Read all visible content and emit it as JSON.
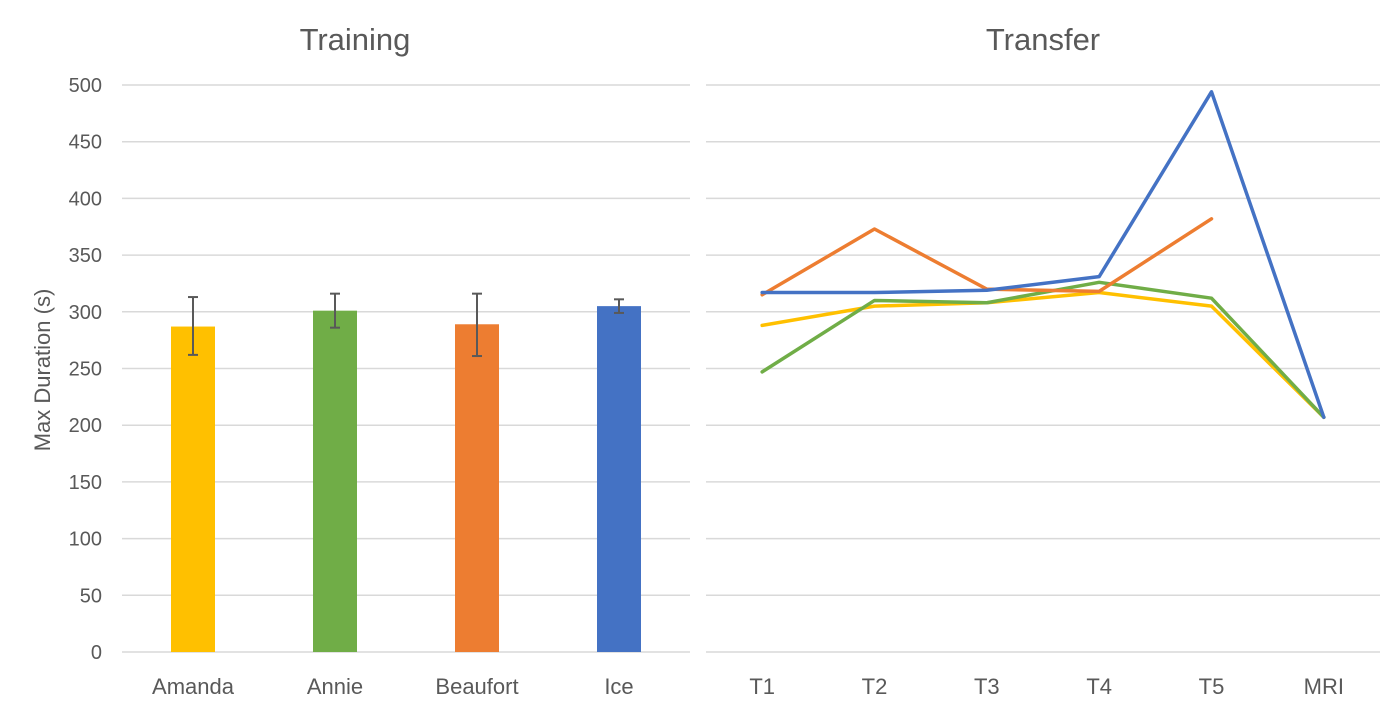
{
  "chart_data": [
    {
      "type": "bar",
      "title": "Training",
      "ylabel": "Max Duration (s)",
      "xlabel": "",
      "ylim": [
        0,
        500
      ],
      "yticks": [
        0,
        50,
        100,
        150,
        200,
        250,
        300,
        350,
        400,
        450,
        500
      ],
      "grid": true,
      "categories": [
        "Amanda",
        "Annie",
        "Beaufort",
        "Ice"
      ],
      "values": [
        287,
        301,
        289,
        305
      ],
      "error_low": [
        262,
        286,
        261,
        299
      ],
      "error_high": [
        313,
        316,
        316,
        311
      ],
      "colors": [
        "#FFC000",
        "#70AD47",
        "#ED7D31",
        "#4472C4"
      ]
    },
    {
      "type": "line",
      "title": "Transfer",
      "xlabel": "",
      "ylabel": "",
      "ylim": [
        0,
        500
      ],
      "grid": true,
      "categories": [
        "T1",
        "T2",
        "T3",
        "T4",
        "T5",
        "MRI"
      ],
      "series": [
        {
          "color": "#4472C4",
          "values": [
            317,
            317,
            319,
            331,
            494,
            207
          ]
        },
        {
          "color": "#ED7D31",
          "values": [
            315,
            373,
            320,
            318,
            382,
            null
          ]
        },
        {
          "color": "#70AD47",
          "values": [
            247,
            310,
            308,
            326,
            312,
            207
          ]
        },
        {
          "color": "#FFC000",
          "values": [
            288,
            305,
            308,
            317,
            305,
            207
          ]
        }
      ]
    }
  ]
}
